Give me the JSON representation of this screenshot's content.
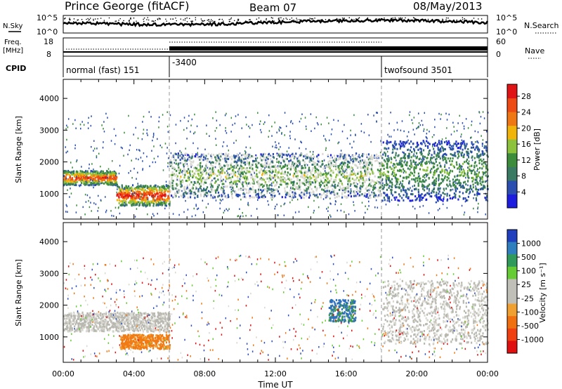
{
  "header": {
    "station": "Prince George (fitACF)",
    "beam": "Beam 07",
    "date": "08/May/2013"
  },
  "top_panels": {
    "nsky_label": "N.Sky",
    "nsky_ticks": [
      "10^5",
      "10^0"
    ],
    "nsearch_label": "N.Search",
    "nsearch_ticks": [
      "10^5",
      "10^0"
    ],
    "freq_label_1": "Freq.",
    "freq_label_2": "[MHz]",
    "freq_ticks": [
      "18",
      "8"
    ],
    "nave_label": "Nave",
    "nave_ticks": [
      "60",
      "0"
    ],
    "cpid_label": "CPID",
    "cpid_segments": [
      {
        "label": "normal (fast) 151",
        "start_hour": 0
      },
      {
        "label": "-3400",
        "start_hour": 6
      },
      {
        "label": "twofsound 3501",
        "start_hour": 18
      }
    ]
  },
  "colors": {
    "power_scale": [
      "#1d1de0",
      "#2a4fb0",
      "#3a7a63",
      "#3c8c3c",
      "#8cc23c",
      "#f0b40a",
      "#f07814",
      "#ee4a14",
      "#e01414"
    ],
    "velocity_scale": [
      "#1f3fbf",
      "#2f7fbf",
      "#2f9a5a",
      "#66cc33",
      "#c0c0b8",
      "#c0c0b8",
      "#f0a030",
      "#f07010",
      "#f04010",
      "#e01010"
    ],
    "ground_scatter": "#b8b8b0"
  },
  "chart_data": [
    {
      "type": "heatmap",
      "name": "power",
      "ylabel": "Slant Range [km]",
      "y_ticks": [
        "1000",
        "2000",
        "3000",
        "4000"
      ],
      "ylim": [
        200,
        4600
      ],
      "xlim_hours": [
        0,
        24
      ],
      "colorbar_label": "Power [dB]",
      "colorbar_ticks": [
        "4",
        "8",
        "12",
        "16",
        "20",
        "24",
        "28"
      ],
      "colorbar_range": [
        0,
        31
      ],
      "features": [
        {
          "t_start": 0.0,
          "t_end": 3.0,
          "range_low": 1300,
          "range_high": 1750,
          "peak_db": 28
        },
        {
          "t_start": 3.0,
          "t_end": 6.0,
          "range_low": 650,
          "range_high": 1300,
          "peak_db": 30
        },
        {
          "t_start": 6.0,
          "t_end": 18.0,
          "range_low": 900,
          "range_high": 2300,
          "peak_db": 16
        },
        {
          "t_start": 18.0,
          "t_end": 24.0,
          "range_low": 800,
          "range_high": 2700,
          "peak_db": 14
        }
      ]
    },
    {
      "type": "heatmap",
      "name": "velocity",
      "ylabel": "Slant Range [km]",
      "y_ticks": [
        "1000",
        "2000",
        "3000",
        "4000"
      ],
      "ylim": [
        200,
        4600
      ],
      "xlim_hours": [
        0,
        24
      ],
      "xlabel": "Time UT",
      "x_ticks": [
        "00:00",
        "04:00",
        "08:00",
        "12:00",
        "16:00",
        "20:00",
        "00:00"
      ],
      "colorbar_label": "Velocity [m s⁻¹]",
      "colorbar_ticks": [
        "1000",
        "500",
        "100",
        "25",
        "-25",
        "-100",
        "-500",
        "-1000"
      ],
      "features": [
        {
          "t_start": 0.0,
          "t_end": 6.0,
          "range_low": 1200,
          "range_high": 1800,
          "kind": "ground_scatter"
        },
        {
          "t_start": 3.2,
          "t_end": 6.0,
          "range_low": 650,
          "range_high": 1100,
          "velocity": -300
        },
        {
          "t_start": 15.0,
          "t_end": 16.5,
          "range_low": 1500,
          "range_high": 2200,
          "velocity": 200
        },
        {
          "t_start": 18.0,
          "t_end": 24.0,
          "range_low": 800,
          "range_high": 2800,
          "kind": "ground_scatter"
        }
      ]
    }
  ]
}
